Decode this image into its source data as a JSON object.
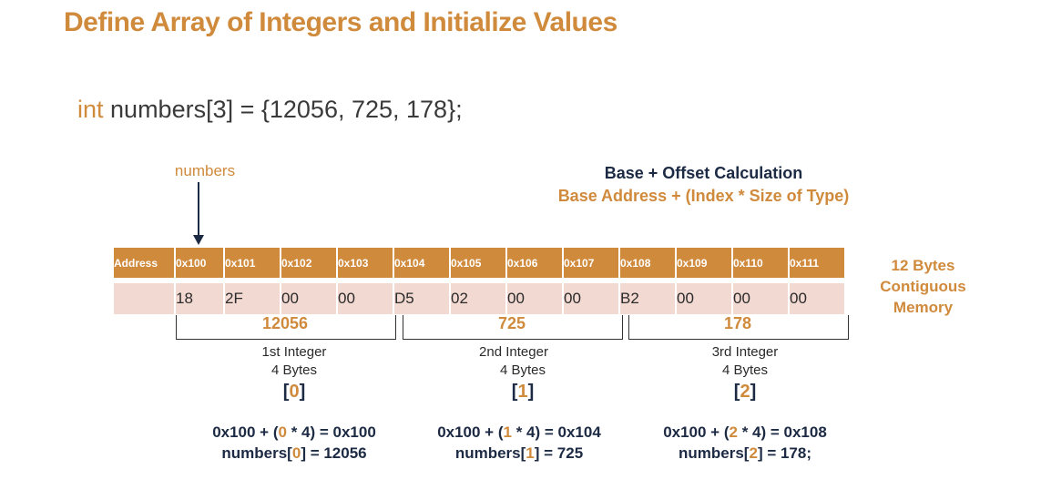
{
  "title": "Define Array of Integers and Initialize Values",
  "code": {
    "keyword": "int",
    "rest": " numbers[3] = {12056, 725, 178};"
  },
  "pointer_label": "numbers",
  "calc": {
    "heading": "Base + Offset Calculation",
    "formula": "Base Address + (Index * Size of Type)"
  },
  "memory": {
    "header_label": "Address",
    "addresses": [
      "0x100",
      "0x101",
      "0x102",
      "0x103",
      "0x104",
      "0x105",
      "0x106",
      "0x107",
      "0x108",
      "0x109",
      "0x110",
      "0x111"
    ],
    "bytes": [
      "18",
      "2F",
      "00",
      "00",
      "D5",
      "02",
      "00",
      "00",
      "B2",
      "00",
      "00",
      "00"
    ]
  },
  "integers": [
    {
      "value": "12056",
      "ordinal": "1st Integer",
      "size": "4 Bytes",
      "index": "0",
      "addr_pre": "0x100 + (",
      "addr_post": " * 4) = 0x100",
      "elem_pre": "numbers[",
      "elem_post": "] = 12056"
    },
    {
      "value": "725",
      "ordinal": "2nd Integer",
      "size": "4 Bytes",
      "index": "1",
      "addr_pre": "0x100 + (",
      "addr_post": " * 4) = 0x104",
      "elem_pre": "numbers[",
      "elem_post": "] = 725"
    },
    {
      "value": "178",
      "ordinal": "3rd Integer",
      "size": "4 Bytes",
      "index": "2",
      "addr_pre": "0x100 + (",
      "addr_post": " * 4) = 0x108",
      "elem_pre": "numbers[",
      "elem_post": "] = 178;"
    }
  ],
  "side_note": [
    "12 Bytes",
    "Contiguous",
    "Memory"
  ],
  "colors": {
    "accent": "#d08a3c",
    "navy": "#1c2a44",
    "cell_bg": "#f2d9d1"
  }
}
